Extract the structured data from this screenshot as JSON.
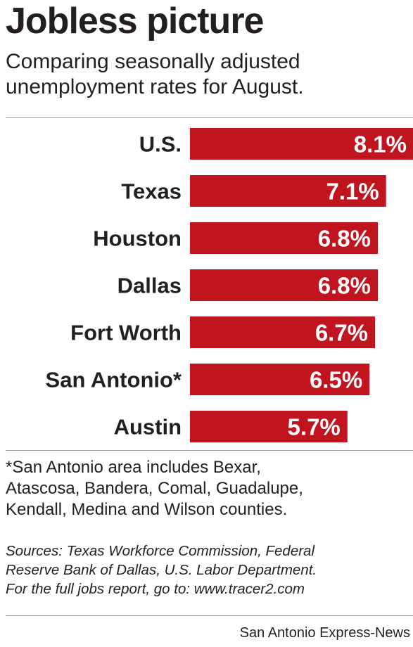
{
  "header": {
    "title": "Jobless picture",
    "subtitle_lines": [
      "Comparing seasonally adjusted",
      "unemployment rates for August."
    ]
  },
  "chart_data": {
    "type": "bar",
    "orientation": "horizontal",
    "categories": [
      "U.S.",
      "Texas",
      "Houston",
      "Dallas",
      "Fort Worth",
      "San Antonio*",
      "Austin"
    ],
    "values": [
      8.1,
      7.1,
      6.8,
      6.8,
      6.7,
      6.5,
      5.7
    ],
    "value_labels": [
      "8.1%",
      "7.1%",
      "6.8%",
      "6.8%",
      "6.7%",
      "6.5%",
      "5.7%"
    ],
    "unit": "%",
    "bar_color": "#c0141e",
    "label_color": "#ffffff",
    "grid": false
  },
  "footnote_lines": [
    "*San Antonio area includes Bexar,",
    "Atascosa, Bandera, Comal, Guadalupe,",
    "Kendall, Medina and Wilson counties."
  ],
  "sources_lines": [
    "Sources: Texas Workforce Commission, Federal",
    "Reserve Bank of Dallas, U.S. Labor Department.",
    "For the full jobs report, go to: www.tracer2.com"
  ],
  "credit": "San Antonio Express-News"
}
